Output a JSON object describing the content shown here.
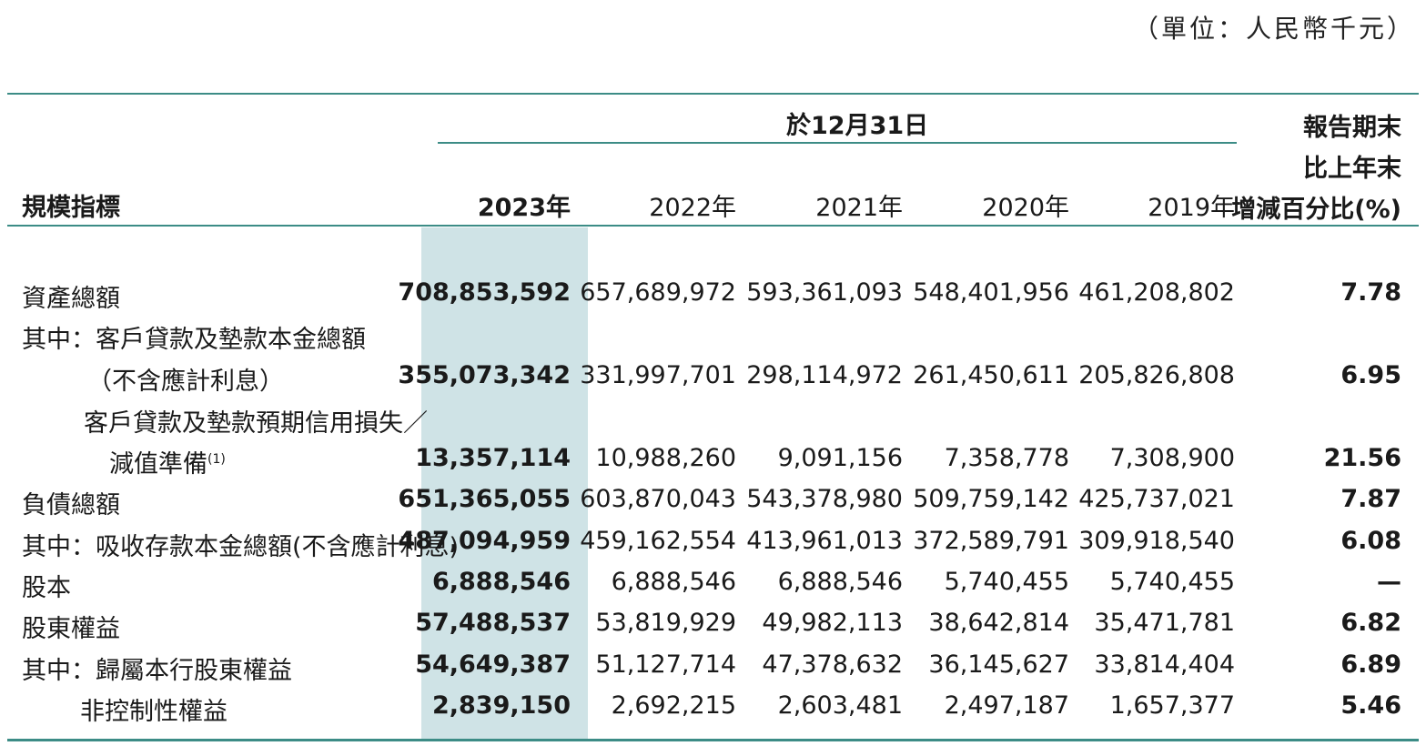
{
  "unit_note": "（單位：人民幣千元）",
  "header": {
    "group_label": "於12月31日",
    "metric_label": "規模指標",
    "change_label_1": "報告期末",
    "change_label_2": "比上年末",
    "change_label_3": "增減百分比(%)",
    "years": [
      "2023年",
      "2022年",
      "2021年",
      "2020年",
      "2019年"
    ]
  },
  "rows": [
    {
      "label": "資產總額",
      "values": [
        "708,853,592",
        "657,689,972",
        "593,361,093",
        "548,401,956",
        "461,208,802",
        "7.78"
      ]
    },
    {
      "label": "其中：客戶貸款及墊款本金總額",
      "values": [
        "",
        "",
        "",
        "",
        "",
        ""
      ]
    },
    {
      "label": "（不含應計利息）",
      "values": [
        "355,073,342",
        "331,997,701",
        "298,114,972",
        "261,450,611",
        "205,826,808",
        "6.95"
      ]
    },
    {
      "label": "客戶貸款及墊款預期信用損失／",
      "values": [
        "",
        "",
        "",
        "",
        "",
        ""
      ]
    },
    {
      "label": "減值準備",
      "footnote": "(1)",
      "values": [
        "13,357,114",
        "10,988,260",
        "9,091,156",
        "7,358,778",
        "7,308,900",
        "21.56"
      ]
    },
    {
      "label": "負債總額",
      "values": [
        "651,365,055",
        "603,870,043",
        "543,378,980",
        "509,759,142",
        "425,737,021",
        "7.87"
      ]
    },
    {
      "label": "其中：吸收存款本金總額(不含應計利息)",
      "values": [
        "487,094,959",
        "459,162,554",
        "413,961,013",
        "372,589,791",
        "309,918,540",
        "6.08"
      ]
    },
    {
      "label": "股本",
      "values": [
        "6,888,546",
        "6,888,546",
        "6,888,546",
        "5,740,455",
        "5,740,455",
        "—"
      ]
    },
    {
      "label": "股東權益",
      "values": [
        "57,488,537",
        "53,819,929",
        "49,982,113",
        "38,642,814",
        "35,471,781",
        "6.82"
      ]
    },
    {
      "label": "其中：歸屬本行股東權益",
      "values": [
        "54,649,387",
        "51,127,714",
        "47,378,632",
        "36,145,627",
        "33,814,404",
        "6.89"
      ]
    },
    {
      "label": "非控制性權益",
      "values": [
        "2,839,150",
        "2,692,215",
        "2,603,481",
        "2,497,187",
        "1,657,377",
        "5.46"
      ]
    }
  ]
}
